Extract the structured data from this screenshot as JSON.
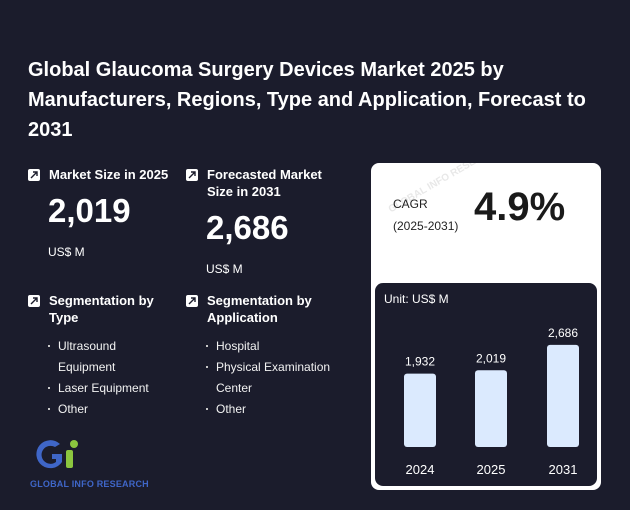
{
  "title": "Global Glaucoma Surgery Devices Market 2025 by Manufacturers, Regions, Type and Application, Forecast to 2031",
  "market_size": {
    "label": "Market Size in 2025",
    "value": "2,019",
    "unit": "US$ M"
  },
  "forecast_size": {
    "label": "Forecasted Market Size in 2031",
    "value": "2,686",
    "unit": "US$ M"
  },
  "segmentation_type": {
    "label": "Segmentation by Type",
    "items": [
      "Ultrasound Equipment",
      "Laser Equipment",
      "Other"
    ]
  },
  "segmentation_application": {
    "label": "Segmentation by Application",
    "items": [
      "Hospital",
      "Physical Examination Center",
      "Other"
    ]
  },
  "cagr": {
    "label": "CAGR",
    "period": "(2025-2031)",
    "value": "4.9%"
  },
  "logo": {
    "text": "GLOBAL INFO RESEARCH",
    "colors": {
      "blue": "#3f66c8",
      "green": "#8cc63f"
    }
  },
  "watermark": "GLOBAL INFO RESEARCH",
  "chart_data": {
    "type": "bar",
    "unit_label": "Unit: US$ M",
    "categories": [
      "2024",
      "2025",
      "2031"
    ],
    "values": [
      1932,
      2019,
      2686
    ],
    "value_labels": [
      "1,932",
      "2,019",
      "2,686"
    ],
    "ylim": [
      0,
      3000
    ],
    "grid": false,
    "bar_color": "#dbeafe"
  }
}
